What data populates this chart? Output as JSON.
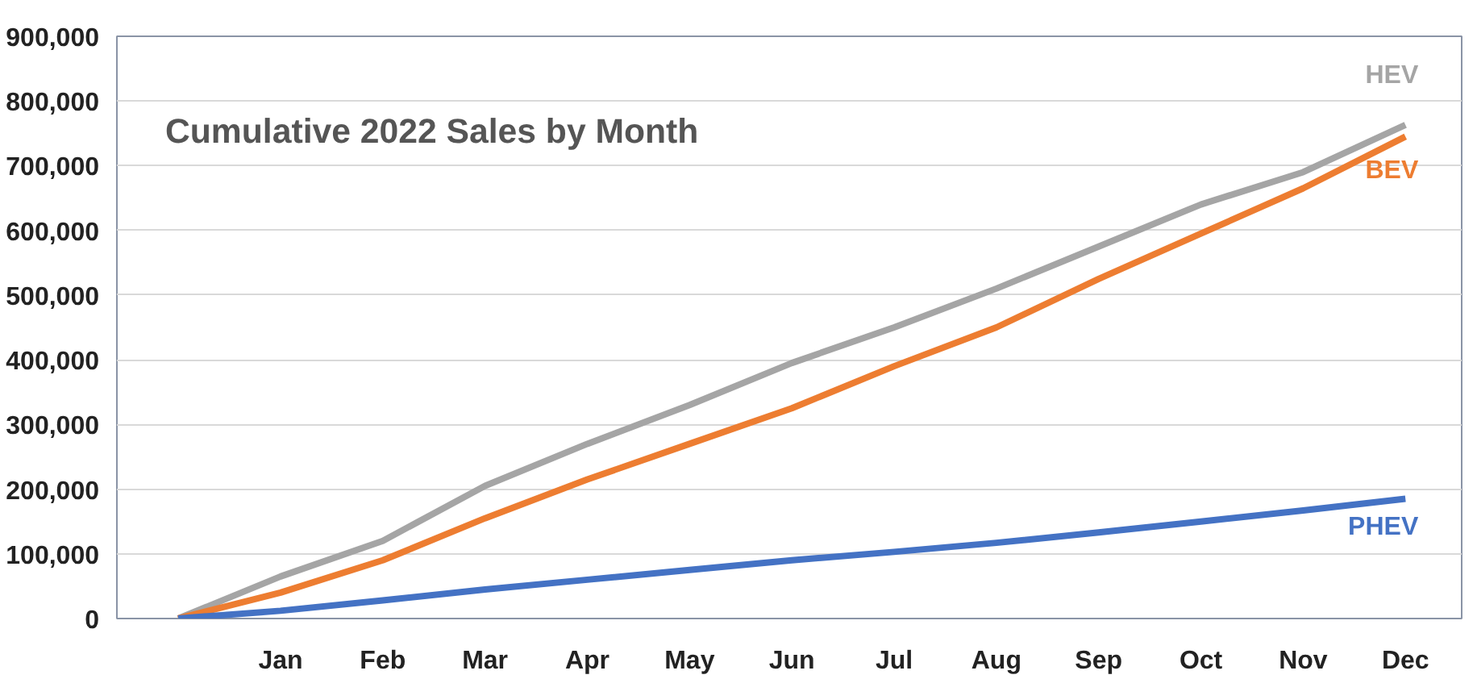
{
  "chart_data": {
    "type": "line",
    "title": "Cumulative 2022 Sales by Month",
    "categories": [
      null,
      "Jan",
      "Feb",
      "Mar",
      "Apr",
      "May",
      "Jun",
      "Jul",
      "Aug",
      "Sep",
      "Oct",
      "Nov",
      "Dec"
    ],
    "series": [
      {
        "name": "HEV",
        "color": "#a5a5a5",
        "values": [
          0,
          65000,
          120000,
          205000,
          270000,
          330000,
          395000,
          450000,
          510000,
          575000,
          640000,
          690000,
          763000
        ]
      },
      {
        "name": "BEV",
        "color": "#ed7d31",
        "values": [
          0,
          40000,
          90000,
          155000,
          215000,
          270000,
          325000,
          390000,
          450000,
          525000,
          595000,
          665000,
          745000
        ]
      },
      {
        "name": "PHEV",
        "color": "#4472c4",
        "values": [
          0,
          12000,
          28000,
          45000,
          60000,
          75000,
          90000,
          103000,
          117000,
          133000,
          150000,
          167000,
          185000
        ]
      }
    ],
    "ylim": [
      0,
      900000
    ],
    "yticks": [
      {
        "value": 0,
        "label": "0"
      },
      {
        "value": 100000,
        "label": "100,000"
      },
      {
        "value": 200000,
        "label": "200,000"
      },
      {
        "value": 300000,
        "label": "300,000"
      },
      {
        "value": 400000,
        "label": "400,000"
      },
      {
        "value": 500000,
        "label": "500,000"
      },
      {
        "value": 600000,
        "label": "600,000"
      },
      {
        "value": 700000,
        "label": "700,000"
      },
      {
        "value": 800000,
        "label": "800,000"
      },
      {
        "value": 900000,
        "label": "900,000"
      }
    ],
    "grid": "y",
    "marker": "none",
    "line_style": "solid"
  }
}
